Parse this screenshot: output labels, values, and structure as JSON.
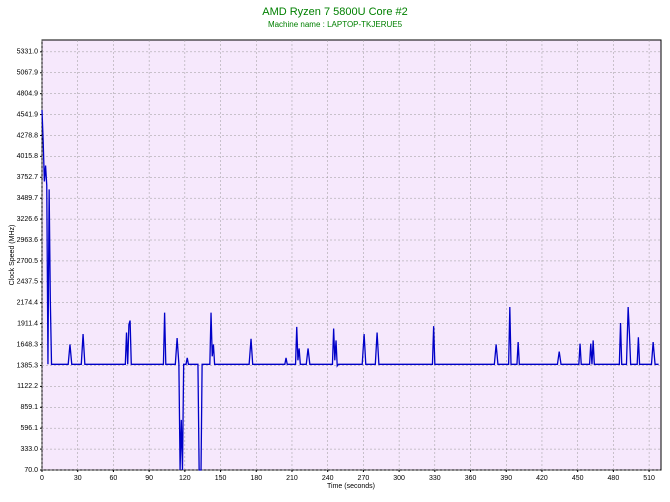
{
  "chart_data": {
    "type": "line",
    "title": "AMD Ryzen 7 5800U Core #2",
    "subtitle": "Machine name : LAPTOP-TKJERUE5",
    "x_label": "Time (seconds)",
    "y_label": "Clock Speed (MHz)",
    "x": [
      0,
      1,
      2,
      3,
      4,
      5,
      6,
      7,
      8,
      22,
      23.5,
      25,
      33,
      34.5,
      36,
      70,
      71,
      72,
      73,
      74,
      75,
      102,
      103,
      104,
      112,
      113.5,
      115,
      116,
      117,
      118,
      119,
      121,
      122,
      123,
      131,
      132,
      133.6,
      134.5,
      141,
      142,
      143,
      144,
      145,
      174,
      175.6,
      177,
      204,
      205,
      206,
      213,
      214,
      215,
      216,
      217,
      222,
      223.5,
      225,
      244,
      245,
      246,
      247,
      248,
      249,
      269,
      270.6,
      272,
      280,
      281.5,
      283,
      328,
      329,
      330,
      380,
      381.5,
      383,
      392,
      393,
      394,
      399,
      400,
      401,
      433,
      434.5,
      436,
      451,
      452,
      453,
      460,
      461,
      462,
      463,
      464,
      485,
      486,
      487,
      491,
      492.4,
      493.5,
      494.5,
      500,
      501,
      502,
      512,
      513.4,
      515,
      518
    ],
    "series": [
      {
        "name": "Core #2",
        "color": "#0000c8",
        "values": [
          4600,
          4200,
          3700,
          3900,
          3650,
          1400,
          3600,
          2200,
          1400,
          1400,
          1650,
          1400,
          1400,
          1780,
          1400,
          1400,
          1800,
          1400,
          1900,
          1950,
          1400,
          1400,
          2050,
          1400,
          1400,
          1730,
          1400,
          70,
          700,
          70,
          1400,
          1400,
          1480,
          1400,
          1400,
          70,
          70,
          1400,
          1400,
          2050,
          1500,
          1650,
          1400,
          1400,
          1720,
          1400,
          1400,
          1480,
          1400,
          1400,
          1870,
          1450,
          1600,
          1400,
          1400,
          1600,
          1400,
          1400,
          1850,
          1450,
          1700,
          1380,
          1400,
          1400,
          1780,
          1400,
          1400,
          1800,
          1400,
          1400,
          1880,
          1400,
          1400,
          1650,
          1400,
          1400,
          2120,
          1400,
          1400,
          1680,
          1400,
          1400,
          1560,
          1400,
          1400,
          1660,
          1400,
          1400,
          1660,
          1400,
          1700,
          1400,
          1400,
          1920,
          1400,
          1400,
          2120,
          1780,
          1400,
          1400,
          1740,
          1400,
          1400,
          1680,
          1400,
          1400
        ]
      }
    ],
    "xlim": [
      0,
      520
    ],
    "xticks": [
      0,
      30,
      60,
      90,
      120,
      150,
      180,
      210,
      240,
      270,
      300,
      330,
      360,
      390,
      420,
      450,
      480,
      510
    ],
    "ylim": [
      70,
      5480
    ],
    "yticks": [
      {
        "value": 70,
        "label": "70.0"
      },
      {
        "value": 333,
        "label": "333.0"
      },
      596.1,
      859.1,
      1122.2,
      1385.3,
      1648.3,
      1911.4,
      2174.4,
      2437.5,
      2700.5,
      2963.6,
      3226.6,
      3489.7,
      3752.7,
      4015.8,
      4278.8,
      4541.9,
      4804.9,
      5067.9,
      {
        "value": 5331,
        "label": "5331.0"
      }
    ],
    "grid": true,
    "plot_background": "#f6e8fc",
    "title_color": "#008000"
  }
}
